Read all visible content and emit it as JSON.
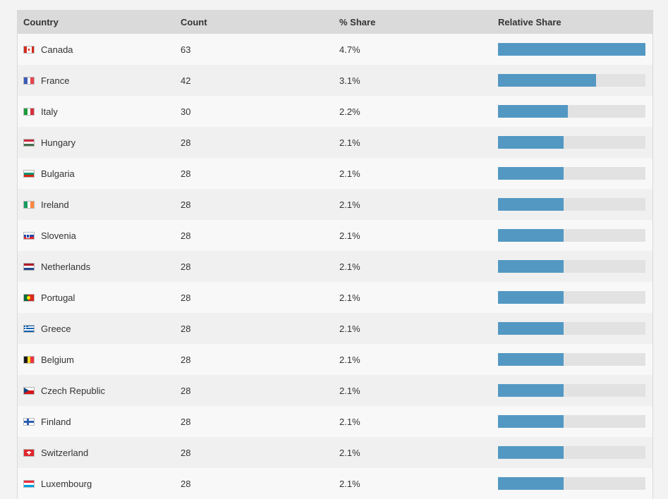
{
  "table": {
    "headers": {
      "country": "Country",
      "count": "Count",
      "share": "% Share",
      "relative": "Relative Share"
    },
    "colors": {
      "bar": "#5398c3",
      "track": "#e2e2e2"
    },
    "rows": [
      {
        "country": "Canada",
        "count": "63",
        "share": "4.7%",
        "relative": 1.0,
        "flag": "flag-canada-icon"
      },
      {
        "country": "France",
        "count": "42",
        "share": "3.1%",
        "relative": 0.667,
        "flag": "flag-france-icon"
      },
      {
        "country": "Italy",
        "count": "30",
        "share": "2.2%",
        "relative": 0.476,
        "flag": "flag-italy-icon"
      },
      {
        "country": "Hungary",
        "count": "28",
        "share": "2.1%",
        "relative": 0.444,
        "flag": "flag-hungary-icon"
      },
      {
        "country": "Bulgaria",
        "count": "28",
        "share": "2.1%",
        "relative": 0.444,
        "flag": "flag-bulgaria-icon"
      },
      {
        "country": "Ireland",
        "count": "28",
        "share": "2.1%",
        "relative": 0.444,
        "flag": "flag-ireland-icon"
      },
      {
        "country": "Slovenia",
        "count": "28",
        "share": "2.1%",
        "relative": 0.444,
        "flag": "flag-slovenia-icon"
      },
      {
        "country": "Netherlands",
        "count": "28",
        "share": "2.1%",
        "relative": 0.444,
        "flag": "flag-netherlands-icon"
      },
      {
        "country": "Portugal",
        "count": "28",
        "share": "2.1%",
        "relative": 0.444,
        "flag": "flag-portugal-icon"
      },
      {
        "country": "Greece",
        "count": "28",
        "share": "2.1%",
        "relative": 0.444,
        "flag": "flag-greece-icon"
      },
      {
        "country": "Belgium",
        "count": "28",
        "share": "2.1%",
        "relative": 0.444,
        "flag": "flag-belgium-icon"
      },
      {
        "country": "Czech Republic",
        "count": "28",
        "share": "2.1%",
        "relative": 0.444,
        "flag": "flag-czech-republic-icon"
      },
      {
        "country": "Finland",
        "count": "28",
        "share": "2.1%",
        "relative": 0.444,
        "flag": "flag-finland-icon"
      },
      {
        "country": "Switzerland",
        "count": "28",
        "share": "2.1%",
        "relative": 0.444,
        "flag": "flag-switzerland-icon"
      },
      {
        "country": "Luxembourg",
        "count": "28",
        "share": "2.1%",
        "relative": 0.444,
        "flag": "flag-luxembourg-icon"
      }
    ]
  }
}
